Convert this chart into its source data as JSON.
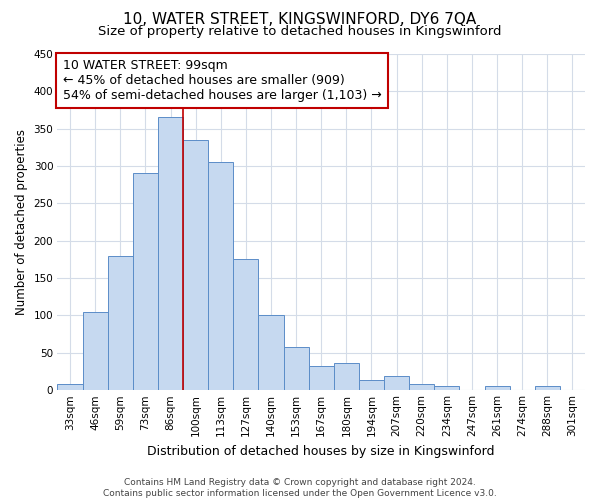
{
  "title": "10, WATER STREET, KINGSWINFORD, DY6 7QA",
  "subtitle": "Size of property relative to detached houses in Kingswinford",
  "xlabel": "Distribution of detached houses by size in Kingswinford",
  "ylabel": "Number of detached properties",
  "bar_labels": [
    "33sqm",
    "46sqm",
    "59sqm",
    "73sqm",
    "86sqm",
    "100sqm",
    "113sqm",
    "127sqm",
    "140sqm",
    "153sqm",
    "167sqm",
    "180sqm",
    "194sqm",
    "207sqm",
    "220sqm",
    "234sqm",
    "247sqm",
    "261sqm",
    "274sqm",
    "288sqm",
    "301sqm"
  ],
  "bar_values": [
    8,
    105,
    180,
    290,
    365,
    335,
    305,
    175,
    100,
    57,
    32,
    36,
    13,
    18,
    8,
    5,
    0,
    5,
    0,
    5,
    0
  ],
  "bar_color": "#c6d9f0",
  "bar_edge_color": "#5b8dc8",
  "property_line_x": 4.5,
  "property_label": "10 WATER STREET: 99sqm",
  "annotation_line1": "← 45% of detached houses are smaller (909)",
  "annotation_line2": "54% of semi-detached houses are larger (1,103) →",
  "annotation_box_facecolor": "#ffffff",
  "annotation_box_edgecolor": "#c00000",
  "ylim": [
    0,
    450
  ],
  "yticks": [
    0,
    50,
    100,
    150,
    200,
    250,
    300,
    350,
    400,
    450
  ],
  "footer1": "Contains HM Land Registry data © Crown copyright and database right 2024.",
  "footer2": "Contains public sector information licensed under the Open Government Licence v3.0.",
  "title_fontsize": 11,
  "subtitle_fontsize": 9.5,
  "xlabel_fontsize": 9,
  "ylabel_fontsize": 8.5,
  "tick_fontsize": 7.5,
  "annotation_fontsize": 9,
  "footer_fontsize": 6.5,
  "grid_color": "#d4dce8",
  "line_color": "#c00000"
}
